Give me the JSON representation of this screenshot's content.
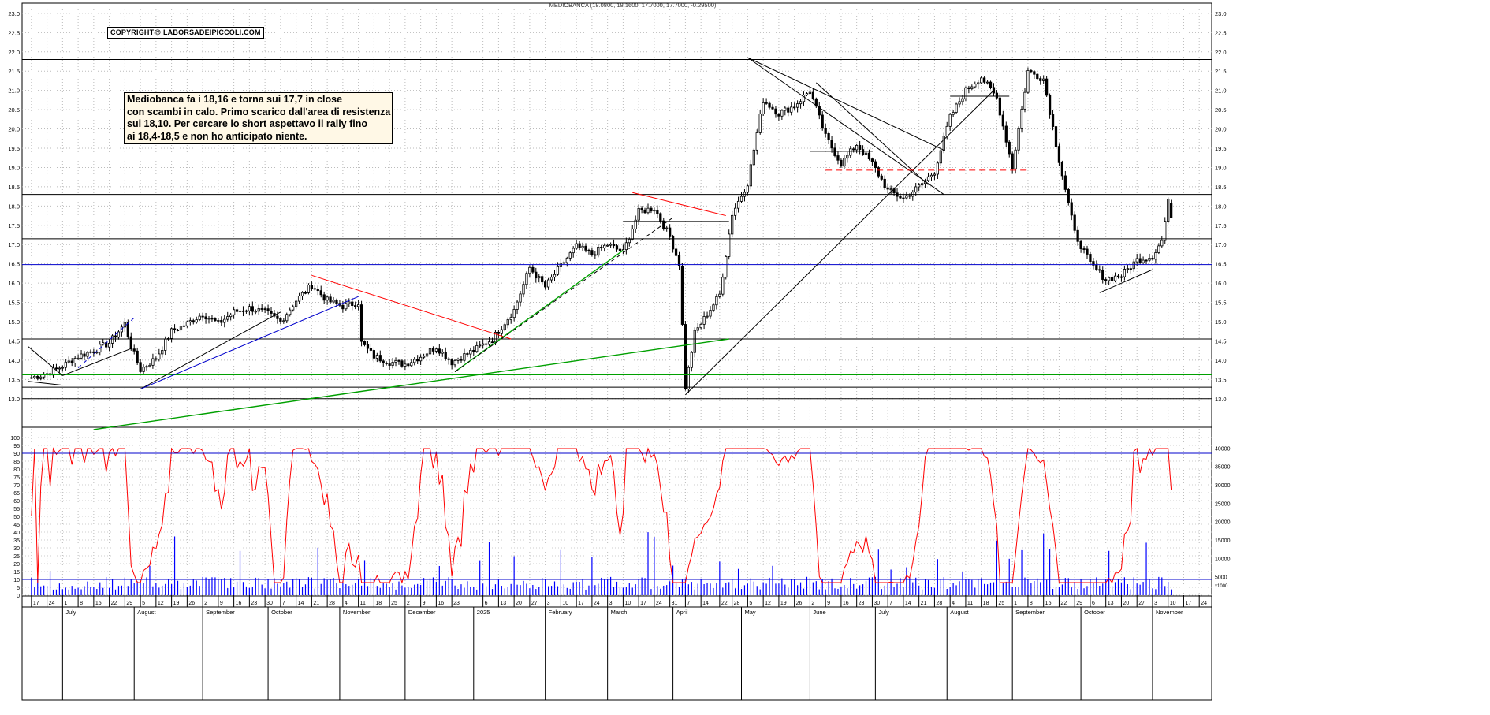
{
  "header": {
    "title": "MEDIOBANCA (18.0800, 18.1600, 17.7000, 17.7000, -0.29500)"
  },
  "copyright": "COPYRIGHT@ LABORSADEIPICCOLI.COM",
  "annotation": {
    "lines": [
      "Mediobanca fa i 18,16 e torna sui 17,7 in close",
      "con scambi in calo. Primo scarico dall'area di resistenza",
      "sui 18,10. Per cercare lo short aspettavo il rally fino",
      "ai 18,4-18,5 e non ho anticipato niente."
    ]
  },
  "colors": {
    "candle": "#000000",
    "oscillator": "#ff0000",
    "volume": "#0000ff",
    "support_blue": "#0000cc",
    "trend_green": "#00a000",
    "trend_red": "#ff0000"
  },
  "chart_data": [
    {
      "type": "candlestick",
      "title": "MEDIOBANCA (18.0800, 18.1600, 17.7000, 17.7000, -0.29500)",
      "ylim": [
        12.3,
        23.1
      ],
      "y_ticks": [
        "23.0",
        "22.5",
        "22.0",
        "21.5",
        "21.0",
        "20.5",
        "20.0",
        "19.5",
        "19.0",
        "18.5",
        "18.0",
        "17.5",
        "17.0",
        "16.5",
        "16.0",
        "15.5",
        "15.0",
        "14.5",
        "14.0",
        "13.5",
        "13.0"
      ],
      "price_anchors": [
        [
          "2024-06-17",
          13.55
        ],
        [
          "2024-06-24",
          13.65
        ],
        [
          "2024-07-01",
          13.85
        ],
        [
          "2024-07-08",
          14.1
        ],
        [
          "2024-07-15",
          14.25
        ],
        [
          "2024-07-22",
          14.45
        ],
        [
          "2024-07-29",
          14.95
        ],
        [
          "2024-07-31",
          14.35
        ],
        [
          "2024-08-05",
          13.75
        ],
        [
          "2024-08-12",
          14.05
        ],
        [
          "2024-08-19",
          14.75
        ],
        [
          "2024-08-26",
          14.95
        ],
        [
          "2024-09-02",
          15.2
        ],
        [
          "2024-09-09",
          14.95
        ],
        [
          "2024-09-16",
          15.25
        ],
        [
          "2024-09-23",
          15.35
        ],
        [
          "2024-09-30",
          15.25
        ],
        [
          "2024-10-07",
          15.0
        ],
        [
          "2024-10-14",
          15.55
        ],
        [
          "2024-10-21",
          15.95
        ],
        [
          "2024-10-28",
          15.55
        ],
        [
          "2024-11-04",
          15.4
        ],
        [
          "2024-11-11",
          15.5
        ],
        [
          "2024-11-12",
          14.45
        ],
        [
          "2024-11-18",
          14.1
        ],
        [
          "2024-11-25",
          13.95
        ],
        [
          "2024-12-02",
          13.9
        ],
        [
          "2024-12-09",
          14.1
        ],
        [
          "2024-12-16",
          14.35
        ],
        [
          "2024-12-23",
          13.95
        ],
        [
          "2025-01-02",
          14.3
        ],
        [
          "2025-01-09",
          14.55
        ],
        [
          "2025-01-20",
          15.3
        ],
        [
          "2025-01-27",
          16.4
        ],
        [
          "2025-02-03",
          15.9
        ],
        [
          "2025-02-10",
          16.45
        ],
        [
          "2025-02-17",
          16.95
        ],
        [
          "2025-02-24",
          16.75
        ],
        [
          "2025-03-03",
          17.0
        ],
        [
          "2025-03-10",
          16.8
        ],
        [
          "2025-03-17",
          17.85
        ],
        [
          "2025-03-24",
          17.95
        ],
        [
          "2025-03-31",
          17.2
        ],
        [
          "2025-04-03",
          16.5
        ],
        [
          "2025-04-07",
          13.3
        ],
        [
          "2025-04-10",
          14.7
        ],
        [
          "2025-04-14",
          14.95
        ],
        [
          "2025-04-22",
          15.7
        ],
        [
          "2025-04-28",
          17.8
        ],
        [
          "2025-05-05",
          18.6
        ],
        [
          "2025-05-12",
          20.75
        ],
        [
          "2025-05-19",
          20.4
        ],
        [
          "2025-05-26",
          20.6
        ],
        [
          "2025-06-02",
          21.0
        ],
        [
          "2025-06-09",
          19.8
        ],
        [
          "2025-06-16",
          19.1
        ],
        [
          "2025-06-23",
          19.6
        ],
        [
          "2025-06-30",
          19.1
        ],
        [
          "2025-07-07",
          18.4
        ],
        [
          "2025-07-14",
          18.2
        ],
        [
          "2025-07-21",
          18.5
        ],
        [
          "2025-07-28",
          18.9
        ],
        [
          "2025-08-04",
          20.3
        ],
        [
          "2025-08-11",
          21.0
        ],
        [
          "2025-08-18",
          21.35
        ],
        [
          "2025-08-25",
          20.8
        ],
        [
          "2025-09-01",
          19.0
        ],
        [
          "2025-09-08",
          21.5
        ],
        [
          "2025-09-15",
          21.3
        ],
        [
          "2025-09-22",
          19.2
        ],
        [
          "2025-09-29",
          17.3
        ],
        [
          "2025-10-06",
          16.5
        ],
        [
          "2025-10-13",
          16.1
        ],
        [
          "2025-10-20",
          16.2
        ],
        [
          "2025-10-27",
          16.6
        ],
        [
          "2025-11-03",
          16.7
        ],
        [
          "2025-11-06",
          17.1
        ],
        [
          "2025-11-10",
          18.1
        ],
        [
          "2025-11-11",
          17.7
        ]
      ],
      "last_candle": {
        "open": 18.08,
        "high": 18.16,
        "low": 17.7,
        "close": 17.7
      },
      "horizontal_levels": [
        {
          "value": 21.8,
          "color": "#000000"
        },
        {
          "value": 18.3,
          "color": "#000000"
        },
        {
          "value": 17.15,
          "color": "#000000"
        },
        {
          "value": 16.48,
          "color": "#0000cc"
        },
        {
          "value": 14.55,
          "color": "#000000"
        },
        {
          "value": 13.62,
          "color": "#00a000"
        },
        {
          "value": 13.3,
          "color": "#000000"
        },
        {
          "value": 13.0,
          "color": "#000000"
        }
      ],
      "trendlines": [
        {
          "from": [
            "2024-06-14",
            13.45
          ],
          "to": [
            "2024-07-01",
            13.35
          ],
          "color": "#000000"
        },
        {
          "from": [
            "2024-06-14",
            14.35
          ],
          "to": [
            "2024-07-01",
            13.6
          ],
          "color": "#000000"
        },
        {
          "from": [
            "2024-07-01",
            13.6
          ],
          "to": [
            "2024-07-31",
            14.3
          ],
          "color": "#000000"
        },
        {
          "from": [
            "2024-07-08",
            13.8
          ],
          "to": [
            "2024-08-01",
            15.1
          ],
          "color": "#0000cc",
          "dashed": true
        },
        {
          "from": [
            "2024-08-05",
            13.25
          ],
          "to": [
            "2024-10-07",
            15.25
          ],
          "color": "#000000"
        },
        {
          "from": [
            "2024-08-05",
            13.25
          ],
          "to": [
            "2024-11-11",
            15.65
          ],
          "color": "#0000cc"
        },
        {
          "from": [
            "2024-10-21",
            16.2
          ],
          "to": [
            "2025-01-17",
            14.55
          ],
          "color": "#ff0000"
        },
        {
          "from": [
            "2024-07-15",
            12.2
          ],
          "to": [
            "2025-04-25",
            14.55
          ],
          "color": "#00a000"
        },
        {
          "from": [
            "2024-12-24",
            13.7
          ],
          "to": [
            "2025-03-10",
            16.85
          ],
          "color": "#00a000"
        },
        {
          "from": [
            "2024-12-24",
            13.7
          ],
          "to": [
            "2025-04-01",
            17.7
          ],
          "color": "#000000",
          "dashed": true
        },
        {
          "from": [
            "2024-12-04",
            14.55
          ],
          "to": [
            "2024-12-23",
            14.55
          ],
          "color": "#000000"
        },
        {
          "from": [
            "2025-03-13",
            18.35
          ],
          "to": [
            "2025-04-24",
            17.75
          ],
          "color": "#ff0000"
        },
        {
          "from": [
            "2025-03-10",
            17.6
          ],
          "to": [
            "2025-04-25",
            17.6
          ],
          "color": "#000000"
        },
        {
          "from": [
            "2025-04-07",
            13.1
          ],
          "to": [
            "2025-08-22",
            21.0
          ],
          "color": "#000000"
        },
        {
          "from": [
            "2025-05-05",
            21.85
          ],
          "to": [
            "2025-07-31",
            18.3
          ],
          "color": "#000000"
        },
        {
          "from": [
            "2025-05-05",
            21.85
          ],
          "to": [
            "2025-07-31",
            19.45
          ],
          "color": "#000000"
        },
        {
          "from": [
            "2025-06-04",
            21.2
          ],
          "to": [
            "2025-07-24",
            18.55
          ],
          "color": "#000000"
        },
        {
          "from": [
            "2025-06-02",
            19.42
          ],
          "to": [
            "2025-06-30",
            19.42
          ],
          "color": "#000000"
        },
        {
          "from": [
            "2025-06-09",
            18.93
          ],
          "to": [
            "2025-09-08",
            18.93
          ],
          "color": "#ff0000",
          "dashed": true
        },
        {
          "from": [
            "2025-08-04",
            20.85
          ],
          "to": [
            "2025-08-29",
            20.85
          ],
          "color": "#000000"
        },
        {
          "from": [
            "2025-10-09",
            15.75
          ],
          "to": [
            "2025-11-03",
            16.35
          ],
          "color": "#000000"
        }
      ]
    },
    {
      "type": "line",
      "name": "oscillator",
      "ylim": [
        0,
        105
      ],
      "y_ticks": [
        "100",
        "95",
        "90",
        "85",
        "80",
        "75",
        "70",
        "65",
        "60",
        "55",
        "50",
        "45",
        "40",
        "35",
        "30",
        "25",
        "20",
        "15",
        "10",
        "5",
        "0"
      ],
      "reference_levels": [
        90,
        10
      ]
    },
    {
      "type": "bar",
      "name": "volume",
      "ylim": [
        0,
        45000
      ],
      "y_ticks": [
        "40000",
        "35000",
        "30000",
        "25000",
        "20000",
        "15000",
        "10000",
        "5000"
      ],
      "scale_label": "x1000"
    }
  ],
  "x_axis": {
    "months": [
      {
        "date": "2024-07-01",
        "label": "July"
      },
      {
        "date": "2024-08-01",
        "label": "August"
      },
      {
        "date": "2024-09-01",
        "label": "September"
      },
      {
        "date": "2024-10-01",
        "label": "October"
      },
      {
        "date": "2024-11-01",
        "label": "November"
      },
      {
        "date": "2024-12-01",
        "label": "December"
      },
      {
        "date": "2025-01-01",
        "label": "2025"
      },
      {
        "date": "2025-02-01",
        "label": "February"
      },
      {
        "date": "2025-03-01",
        "label": "March"
      },
      {
        "date": "2025-04-01",
        "label": "April"
      },
      {
        "date": "2025-05-01",
        "label": "May"
      },
      {
        "date": "2025-06-01",
        "label": "June"
      },
      {
        "date": "2025-07-01",
        "label": "July"
      },
      {
        "date": "2025-08-01",
        "label": "August"
      },
      {
        "date": "2025-09-01",
        "label": "September"
      },
      {
        "date": "2025-10-01",
        "label": "October"
      },
      {
        "date": "2025-11-01",
        "label": "November"
      }
    ],
    "days": [
      {
        "date": "2024-06-17",
        "label": "17"
      },
      {
        "date": "2024-06-24",
        "label": "24"
      },
      {
        "date": "2024-07-01",
        "label": "1"
      },
      {
        "date": "2024-07-08",
        "label": "8"
      },
      {
        "date": "2024-07-15",
        "label": "15"
      },
      {
        "date": "2024-07-22",
        "label": "22"
      },
      {
        "date": "2024-07-29",
        "label": "29"
      },
      {
        "date": "2024-08-05",
        "label": "5"
      },
      {
        "date": "2024-08-12",
        "label": "12"
      },
      {
        "date": "2024-08-19",
        "label": "19"
      },
      {
        "date": "2024-08-26",
        "label": "26"
      },
      {
        "date": "2024-09-02",
        "label": "2"
      },
      {
        "date": "2024-09-09",
        "label": "9"
      },
      {
        "date": "2024-09-16",
        "label": "16"
      },
      {
        "date": "2024-09-23",
        "label": "23"
      },
      {
        "date": "2024-09-30",
        "label": "30"
      },
      {
        "date": "2024-10-07",
        "label": "7"
      },
      {
        "date": "2024-10-14",
        "label": "14"
      },
      {
        "date": "2024-10-21",
        "label": "21"
      },
      {
        "date": "2024-10-28",
        "label": "28"
      },
      {
        "date": "2024-11-04",
        "label": "4"
      },
      {
        "date": "2024-11-11",
        "label": "11"
      },
      {
        "date": "2024-11-18",
        "label": "18"
      },
      {
        "date": "2024-11-25",
        "label": "25"
      },
      {
        "date": "2024-12-02",
        "label": "2"
      },
      {
        "date": "2024-12-09",
        "label": "9"
      },
      {
        "date": "2024-12-16",
        "label": "16"
      },
      {
        "date": "2024-12-23",
        "label": "23"
      },
      {
        "date": "2025-01-06",
        "label": "6"
      },
      {
        "date": "2025-01-13",
        "label": "13"
      },
      {
        "date": "2025-01-20",
        "label": "20"
      },
      {
        "date": "2025-01-27",
        "label": "27"
      },
      {
        "date": "2025-02-03",
        "label": "3"
      },
      {
        "date": "2025-02-10",
        "label": "10"
      },
      {
        "date": "2025-02-17",
        "label": "17"
      },
      {
        "date": "2025-02-24",
        "label": "24"
      },
      {
        "date": "2025-03-03",
        "label": "3"
      },
      {
        "date": "2025-03-10",
        "label": "10"
      },
      {
        "date": "2025-03-17",
        "label": "17"
      },
      {
        "date": "2025-03-24",
        "label": "24"
      },
      {
        "date": "2025-03-31",
        "label": "31"
      },
      {
        "date": "2025-04-07",
        "label": "7"
      },
      {
        "date": "2025-04-14",
        "label": "14"
      },
      {
        "date": "2025-04-22",
        "label": "22"
      },
      {
        "date": "2025-04-28",
        "label": "28"
      },
      {
        "date": "2025-05-05",
        "label": "5"
      },
      {
        "date": "2025-05-12",
        "label": "12"
      },
      {
        "date": "2025-05-19",
        "label": "19"
      },
      {
        "date": "2025-05-26",
        "label": "26"
      },
      {
        "date": "2025-06-02",
        "label": "2"
      },
      {
        "date": "2025-06-09",
        "label": "9"
      },
      {
        "date": "2025-06-16",
        "label": "16"
      },
      {
        "date": "2025-06-23",
        "label": "23"
      },
      {
        "date": "2025-06-30",
        "label": "30"
      },
      {
        "date": "2025-07-07",
        "label": "7"
      },
      {
        "date": "2025-07-14",
        "label": "14"
      },
      {
        "date": "2025-07-21",
        "label": "21"
      },
      {
        "date": "2025-07-28",
        "label": "28"
      },
      {
        "date": "2025-08-04",
        "label": "4"
      },
      {
        "date": "2025-08-11",
        "label": "11"
      },
      {
        "date": "2025-08-18",
        "label": "18"
      },
      {
        "date": "2025-08-25",
        "label": "25"
      },
      {
        "date": "2025-09-01",
        "label": "1"
      },
      {
        "date": "2025-09-08",
        "label": "8"
      },
      {
        "date": "2025-09-15",
        "label": "15"
      },
      {
        "date": "2025-09-22",
        "label": "22"
      },
      {
        "date": "2025-09-29",
        "label": "29"
      },
      {
        "date": "2025-10-06",
        "label": "6"
      },
      {
        "date": "2025-10-13",
        "label": "13"
      },
      {
        "date": "2025-10-20",
        "label": "20"
      },
      {
        "date": "2025-10-27",
        "label": "27"
      },
      {
        "date": "2025-11-03",
        "label": "3"
      },
      {
        "date": "2025-11-10",
        "label": "10"
      },
      {
        "date": "2025-11-17",
        "label": "17"
      },
      {
        "date": "2025-11-24",
        "label": "24"
      }
    ]
  }
}
